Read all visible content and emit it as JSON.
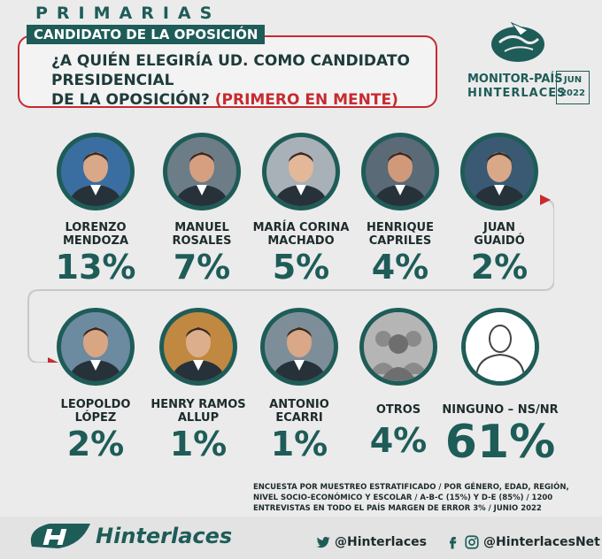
{
  "header": {
    "kicker": "PRIMARIAS",
    "subhead": "CANDIDATO DE LA OPOSICIÓN",
    "question_line1": "¿A QUIÉN ELEGIRÍA UD. COMO CANDIDATO PRESIDENCIAL",
    "question_line2": "DE LA OPOSICIÓN?",
    "question_highlight": "(PRIMERO EN MENTE)"
  },
  "brand": {
    "line1": "MONITOR-PAÍS",
    "line2": "HINTERLACES",
    "month": "JUN",
    "year": "2022"
  },
  "chart_data": {
    "type": "table",
    "title": "¿A QUIÉN ELEGIRÍA UD. COMO CANDIDATO PRESIDENCIAL DE LA OPOSICIÓN? (PRIMERO EN MENTE)",
    "categories": [
      "LORENZO MENDOZA",
      "MANUEL ROSALES",
      "MARÍA CORINA MACHADO",
      "HENRIQUE CAPRILES",
      "JUAN GUAIDÓ",
      "LEOPOLDO LÓPEZ",
      "HENRY RAMOS ALLUP",
      "ANTONIO ECARRI",
      "OTROS",
      "NINGUNO – NS/NR"
    ],
    "rows": [
      {
        "line1": "LORENZO",
        "line2": "MENDOZA",
        "label": "13%",
        "value": 13
      },
      {
        "line1": "MANUEL",
        "line2": "ROSALES",
        "label": "7%",
        "value": 7
      },
      {
        "line1": "MARÍA CORINA",
        "line2": "MACHADO",
        "label": "5%",
        "value": 5
      },
      {
        "line1": "HENRIQUE",
        "line2": "CAPRILES",
        "label": "4%",
        "value": 4
      },
      {
        "line1": "JUAN",
        "line2": "GUAIDÓ",
        "label": "2%",
        "value": 2
      },
      {
        "line1": "LEOPOLDO",
        "line2": "LÓPEZ",
        "label": "2%",
        "value": 2
      },
      {
        "line1": "HENRY RAMOS",
        "line2": "ALLUP",
        "label": "1%",
        "value": 1
      },
      {
        "line1": "ANTONIO",
        "line2": "ECARRI",
        "label": "1%",
        "value": 1
      },
      {
        "line1": "OTROS",
        "line2": "",
        "label": "4%",
        "value": 4
      },
      {
        "line1": "NINGUNO – NS/NR",
        "line2": "",
        "label": "61%",
        "value": 61
      }
    ],
    "unit": "%"
  },
  "methodology": {
    "line1": "ENCUESTA POR MUESTREO ESTRATIFICADO / POR GÉNERO, EDAD, REGIÓN,",
    "line2": "NIVEL SOCIO-ECONÓMICO Y ESCOLAR / A-B-C (15%) Y D-E (85%) /  1200",
    "line3": "ENTREVISTAS EN TODO EL PAÍS  MARGEN DE ERROR 3% / JUNIO 2022"
  },
  "footer": {
    "brand_name": "Hinterlaces",
    "twitter_handle": "@Hinterlaces",
    "facebook_instagram_handle": "@HinterlacesNet",
    "icons": [
      "twitter-icon",
      "facebook-icon",
      "instagram-icon"
    ]
  },
  "colors": {
    "teal": "#1e5c58",
    "red": "#c72a30",
    "background": "#ebebeb"
  }
}
